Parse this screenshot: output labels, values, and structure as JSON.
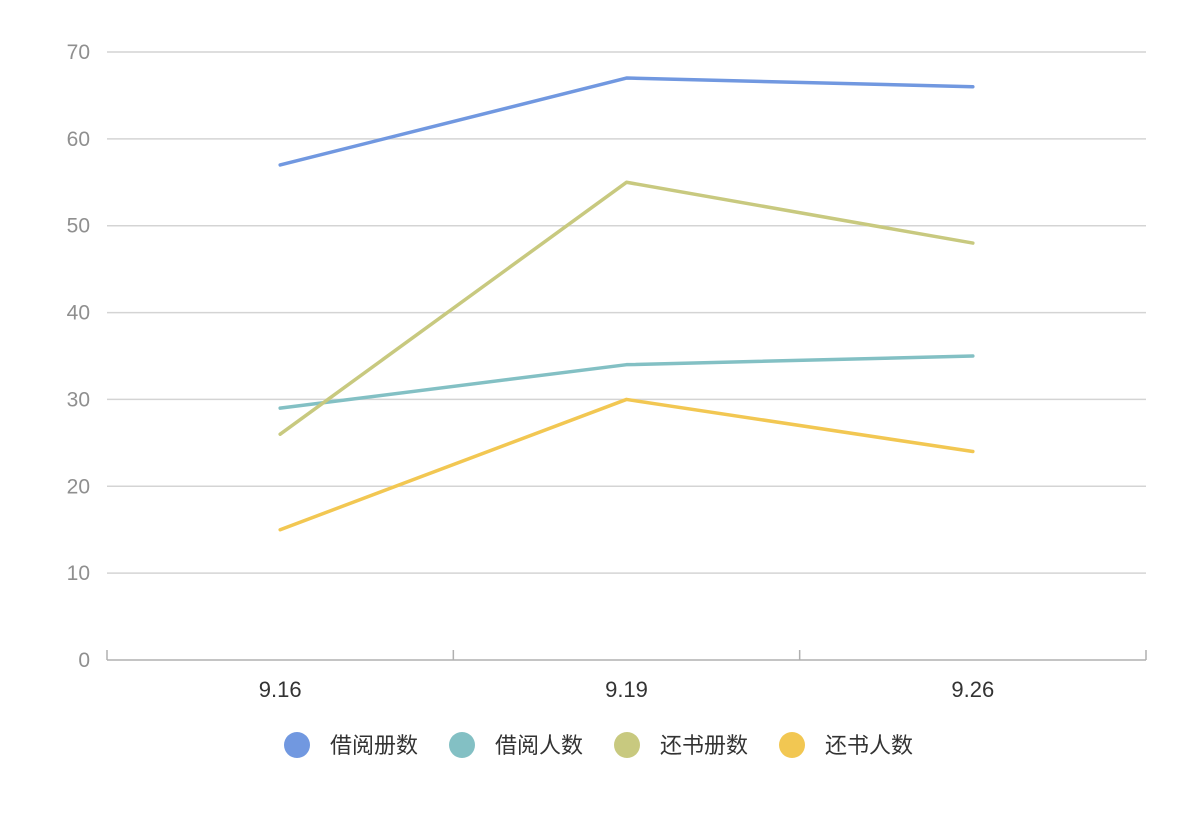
{
  "chart_data": {
    "type": "line",
    "title": "",
    "xlabel": "",
    "ylabel": "",
    "categories": [
      "9.16",
      "9.19",
      "9.26"
    ],
    "ylim": [
      0,
      70
    ],
    "yticks": [
      0,
      10,
      20,
      30,
      40,
      50,
      60,
      70
    ],
    "grid": true,
    "legend_position": "bottom",
    "series": [
      {
        "name": "借阅册数",
        "values": [
          57,
          67,
          66
        ],
        "color": "#7198e0"
      },
      {
        "name": "借阅人数",
        "values": [
          29,
          34,
          35
        ],
        "color": "#83c0c4"
      },
      {
        "name": "还书册数",
        "values": [
          26,
          55,
          48
        ],
        "color": "#c8c97f"
      },
      {
        "name": "还书人数",
        "values": [
          15,
          30,
          24
        ],
        "color": "#f2c752"
      }
    ]
  }
}
